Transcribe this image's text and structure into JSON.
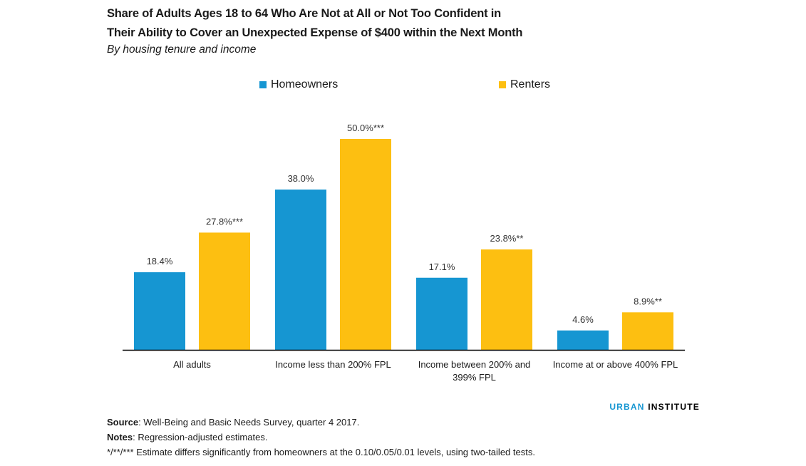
{
  "colors": {
    "homeowners": "#1696d2",
    "renters": "#fdbf11",
    "axis": "#000000",
    "brand": "#1696d2"
  },
  "chart_data": {
    "type": "bar",
    "title": "Share of Adults Ages 18 to 64 Who Are Not at All or Not Too Confident in Their Ability to Cover an Unexpected Expense of $400 within the Next Month",
    "title_lines": [
      "Share of Adults Ages 18 to 64 Who Are Not at All or Not Too Confident in",
      "Their Ability to Cover an Unexpected Expense of $400 within the Next Month"
    ],
    "subtitle": "By housing tenure and income",
    "xlabel": "",
    "ylabel": "",
    "ylim": [
      0,
      55
    ],
    "grid": false,
    "legend_position": "top-center",
    "categories": [
      [
        "All adults"
      ],
      [
        "Income less than 200% FPL"
      ],
      [
        "Income between 200% and",
        "399% FPL"
      ],
      [
        "Income at or above 400% FPL"
      ]
    ],
    "series": [
      {
        "name": "Homeowners",
        "values": [
          18.4,
          38.0,
          17.1,
          4.6
        ],
        "labels": [
          "18.4%",
          "38.0%",
          "17.1%",
          "4.6%"
        ]
      },
      {
        "name": "Renters",
        "values": [
          27.8,
          50.0,
          23.8,
          8.9
        ],
        "labels": [
          "27.8%***",
          "50.0%***",
          "23.8%**",
          "8.9%**"
        ]
      }
    ]
  },
  "notes": {
    "source_label": "Source",
    "source_text": ": Well-Being and Basic Needs Survey, quarter 4 2017.",
    "notes_label": "Notes",
    "notes_text": ": Regression-adjusted estimates.",
    "significance_text": "*/**/*** Estimate differs significantly from homeowners at the 0.10/0.05/0.01 levels, using two-tailed tests."
  },
  "brand": {
    "part1": "URBAN ",
    "part2": "INSTITUTE"
  }
}
